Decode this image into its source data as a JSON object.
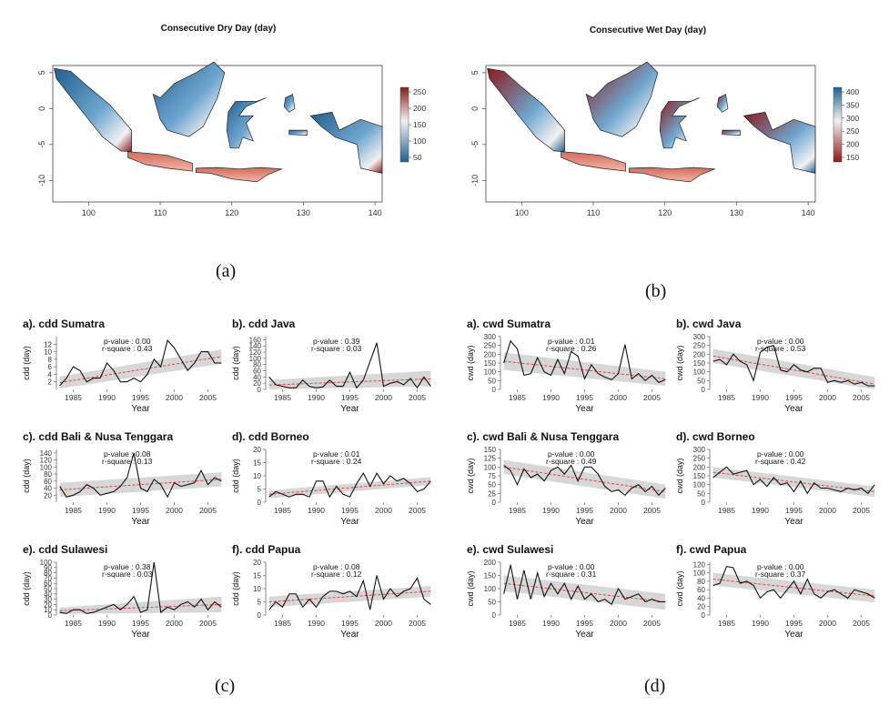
{
  "figure": {
    "labels": {
      "a": "(a)",
      "b": "(b)",
      "c": "(c)",
      "d": "(d)"
    }
  },
  "maps": [
    {
      "id": "a",
      "title": "Consecutive Dry Day (day)",
      "x_ticks": [
        "100",
        "110",
        "120",
        "130",
        "140"
      ],
      "y_ticks": [
        "5",
        "0",
        "-5",
        "-10"
      ],
      "colorbar_ticks": [
        "250",
        "200",
        "150",
        "100",
        "50"
      ],
      "colors": {
        "low": "#1f5f8f",
        "mid": "#f2f2f2",
        "high": "#8b1a1a"
      }
    },
    {
      "id": "b",
      "title": "Consecutive Wet Day (day)",
      "x_ticks": [
        "100",
        "110",
        "120",
        "130",
        "140"
      ],
      "y_ticks": [
        "5",
        "0",
        "-5",
        "-10"
      ],
      "colorbar_ticks": [
        "400",
        "350",
        "300",
        "250",
        "200",
        "150"
      ],
      "colors": {
        "low": "#8b1a1a",
        "mid": "#f2f2f2",
        "high": "#1f5f8f"
      }
    }
  ],
  "chart_data": [
    {
      "type": "line",
      "title": "a). cdd Sumatra",
      "xlabel": "Year",
      "ylabel": "cdd (day)",
      "x_ticks": [
        1985,
        1990,
        1995,
        2000,
        2005
      ],
      "y_ticks": [
        2,
        4,
        6,
        8,
        10,
        12
      ],
      "ylim": [
        0,
        14
      ],
      "pvalue_text": "p-value : 0.00",
      "rsquare_text": "r-square : 0.43",
      "x": [
        1983,
        1984,
        1985,
        1986,
        1987,
        1988,
        1989,
        1990,
        1991,
        1992,
        1993,
        1994,
        1995,
        1996,
        1997,
        1998,
        1999,
        2000,
        2001,
        2002,
        2003,
        2004,
        2005,
        2006,
        2007
      ],
      "y": [
        1,
        3,
        6,
        5,
        2,
        3,
        3,
        7,
        5,
        2,
        2,
        3,
        2,
        4,
        8,
        6,
        13,
        11,
        8,
        5,
        7,
        10,
        10,
        7,
        7
      ],
      "trend": [
        1.8,
        8.7
      ],
      "band_lo": [
        0.2,
        6.8
      ],
      "band_hi": [
        3.4,
        10.6
      ]
    },
    {
      "type": "line",
      "title": "b). cdd Java",
      "xlabel": "Year",
      "ylabel": "cdd (day)",
      "x_ticks": [
        1985,
        1990,
        1995,
        2000,
        2005
      ],
      "y_ticks": [
        0,
        20,
        40,
        60,
        80,
        100,
        120,
        140,
        160
      ],
      "ylim": [
        0,
        170
      ],
      "pvalue_text": "p-value : 0.39",
      "rsquare_text": "r-square : 0.03",
      "x": [
        1983,
        1984,
        1985,
        1986,
        1987,
        1988,
        1989,
        1990,
        1991,
        1992,
        1993,
        1994,
        1995,
        1996,
        1997,
        1998,
        1999,
        2000,
        2001,
        2002,
        2003,
        2004,
        2005,
        2006,
        2007
      ],
      "y": [
        40,
        15,
        10,
        5,
        5,
        30,
        10,
        5,
        8,
        30,
        10,
        10,
        55,
        5,
        30,
        90,
        150,
        10,
        20,
        25,
        15,
        35,
        5,
        40,
        10
      ],
      "trend": [
        14,
        34
      ],
      "band_lo": [
        0,
        10
      ],
      "band_hi": [
        30,
        60
      ]
    },
    {
      "type": "line",
      "title": "c). cdd Bali & Nusa Tenggara",
      "xlabel": "Year",
      "ylabel": "cdd (day)",
      "x_ticks": [
        1985,
        1990,
        1995,
        2000,
        2005
      ],
      "y_ticks": [
        20,
        40,
        60,
        80,
        100,
        120,
        140
      ],
      "ylim": [
        0,
        150
      ],
      "pvalue_text": "p-value : 0.08",
      "rsquare_text": "r-square : 0.13",
      "x": [
        1983,
        1984,
        1985,
        1986,
        1987,
        1988,
        1989,
        1990,
        1991,
        1992,
        1993,
        1994,
        1995,
        1996,
        1997,
        1998,
        1999,
        2000,
        2001,
        2002,
        2003,
        2004,
        2005,
        2006,
        2007
      ],
      "y": [
        45,
        15,
        20,
        30,
        50,
        40,
        20,
        25,
        30,
        45,
        70,
        140,
        40,
        30,
        65,
        50,
        15,
        55,
        45,
        50,
        55,
        90,
        50,
        70,
        60
      ],
      "trend": [
        35,
        65
      ],
      "band_lo": [
        15,
        45
      ],
      "band_hi": [
        55,
        85
      ]
    },
    {
      "type": "line",
      "title": "d). cdd Borneo",
      "xlabel": "Year",
      "ylabel": "cdd (day)",
      "x_ticks": [
        1985,
        1990,
        1995,
        2000,
        2005
      ],
      "y_ticks": [
        0,
        5,
        10,
        15,
        20
      ],
      "ylim": [
        0,
        20
      ],
      "pvalue_text": "p-value : 0.01",
      "rsquare_text": "r-square : 0.24",
      "x": [
        1983,
        1984,
        1985,
        1986,
        1987,
        1988,
        1989,
        1990,
        1991,
        1992,
        1993,
        1994,
        1995,
        1996,
        1997,
        1998,
        1999,
        2000,
        2001,
        2002,
        2003,
        2004,
        2005,
        2006,
        2007
      ],
      "y": [
        2,
        4,
        3,
        2,
        3,
        3,
        2,
        8,
        8,
        2,
        6,
        3,
        2,
        7,
        11,
        6,
        11,
        7,
        10,
        8,
        9,
        7,
        4,
        5,
        8
      ],
      "trend": [
        3,
        8
      ],
      "band_lo": [
        1.5,
        6.5
      ],
      "band_hi": [
        4.5,
        9.5
      ]
    },
    {
      "type": "line",
      "title": "e). cdd Sulawesi",
      "xlabel": "Year",
      "ylabel": "cdd (day)",
      "x_ticks": [
        1985,
        1990,
        1995,
        2000,
        2005
      ],
      "y_ticks": [
        0,
        10,
        20,
        30,
        40,
        50,
        60,
        70,
        80,
        90,
        100
      ],
      "ylim": [
        0,
        100
      ],
      "pvalue_text": "p-value : 0.38",
      "rsquare_text": "r-square : 0.03",
      "x": [
        1983,
        1984,
        1985,
        1986,
        1987,
        1988,
        1989,
        1990,
        1991,
        1992,
        1993,
        1994,
        1995,
        1996,
        1997,
        1998,
        1999,
        2000,
        2001,
        2002,
        2003,
        2004,
        2005,
        2006,
        2007
      ],
      "y": [
        5,
        3,
        10,
        10,
        3,
        5,
        10,
        15,
        20,
        10,
        20,
        35,
        5,
        10,
        100,
        5,
        15,
        10,
        20,
        25,
        15,
        30,
        10,
        25,
        15
      ],
      "trend": [
        8,
        20
      ],
      "band_lo": [
        2,
        5
      ],
      "band_hi": [
        14,
        35
      ]
    },
    {
      "type": "line",
      "title": "f). cdd Papua",
      "xlabel": "Year",
      "ylabel": "cdd (day)",
      "x_ticks": [
        1985,
        1990,
        1995,
        2000,
        2005
      ],
      "y_ticks": [
        0,
        5,
        10,
        15,
        20
      ],
      "ylim": [
        0,
        20
      ],
      "pvalue_text": "p-value : 0.08",
      "rsquare_text": "r-square : 0.12",
      "x": [
        1983,
        1984,
        1985,
        1986,
        1987,
        1988,
        1989,
        1990,
        1991,
        1992,
        1993,
        1994,
        1995,
        1996,
        1997,
        1998,
        1999,
        2000,
        2001,
        2002,
        2003,
        2004,
        2005,
        2006,
        2007
      ],
      "y": [
        2,
        5,
        3,
        8,
        8,
        3,
        6,
        3,
        7,
        9,
        9,
        8,
        9,
        7,
        13,
        2,
        15,
        6,
        10,
        7,
        9,
        10,
        14,
        6,
        4
      ],
      "trend": [
        5,
        9
      ],
      "band_lo": [
        3,
        7
      ],
      "band_hi": [
        7,
        11
      ]
    },
    {
      "type": "line",
      "title": "a). cwd Sumatra",
      "xlabel": "Year",
      "ylabel": "cwd (day)",
      "x_ticks": [
        1985,
        1990,
        1995,
        2000,
        2005
      ],
      "y_ticks": [
        0,
        50,
        100,
        150,
        200,
        250,
        300
      ],
      "ylim": [
        0,
        300
      ],
      "pvalue_text": "p-value : 0.01",
      "rsquare_text": "r-square : 0.26",
      "x": [
        1983,
        1984,
        1985,
        1986,
        1987,
        1988,
        1989,
        1990,
        1991,
        1992,
        1993,
        1994,
        1995,
        1996,
        1997,
        1998,
        1999,
        2000,
        2001,
        2002,
        2003,
        2004,
        2005,
        2006,
        2007
      ],
      "y": [
        150,
        275,
        230,
        80,
        90,
        180,
        100,
        80,
        170,
        90,
        215,
        190,
        60,
        140,
        90,
        70,
        55,
        90,
        255,
        60,
        90,
        50,
        80,
        40,
        55
      ],
      "trend": [
        160,
        60
      ],
      "band_lo": [
        110,
        20
      ],
      "band_hi": [
        210,
        100
      ]
    },
    {
      "type": "line",
      "title": "b). cwd Java",
      "xlabel": "Year",
      "ylabel": "cwd (day)",
      "x_ticks": [
        1985,
        1990,
        1995,
        2000,
        2005
      ],
      "y_ticks": [
        0,
        50,
        100,
        150,
        200,
        250,
        300
      ],
      "ylim": [
        0,
        300
      ],
      "pvalue_text": "p-value : 0.00",
      "rsquare_text": "r-square : 0.53",
      "x": [
        1983,
        1984,
        1985,
        1986,
        1987,
        1988,
        1989,
        1990,
        1991,
        1992,
        1993,
        1994,
        1995,
        1996,
        1997,
        1998,
        1999,
        2000,
        2001,
        2002,
        2003,
        2004,
        2005,
        2006,
        2007
      ],
      "y": [
        160,
        170,
        140,
        200,
        160,
        140,
        50,
        210,
        240,
        250,
        110,
        100,
        140,
        110,
        100,
        120,
        120,
        40,
        50,
        40,
        50,
        30,
        40,
        20,
        20
      ],
      "trend": [
        190,
        30
      ],
      "band_lo": [
        150,
        0
      ],
      "band_hi": [
        230,
        70
      ]
    },
    {
      "type": "line",
      "title": "c). cwd Bali & Nusa Tenggara",
      "xlabel": "Year",
      "ylabel": "cwd (day)",
      "x_ticks": [
        1985,
        1990,
        1995,
        2000,
        2005
      ],
      "y_ticks": [
        0,
        25,
        50,
        75,
        100,
        125,
        150
      ],
      "ylim": [
        0,
        150
      ],
      "pvalue_text": "p-value : 0.00",
      "rsquare_text": "r-square : 0.49",
      "x": [
        1983,
        1984,
        1985,
        1986,
        1987,
        1988,
        1989,
        1990,
        1991,
        1992,
        1993,
        1994,
        1995,
        1996,
        1997,
        1998,
        1999,
        2000,
        2001,
        2002,
        2003,
        2004,
        2005,
        2006,
        2007
      ],
      "y": [
        105,
        90,
        50,
        95,
        70,
        80,
        60,
        90,
        100,
        80,
        105,
        60,
        100,
        100,
        80,
        45,
        30,
        35,
        20,
        40,
        50,
        30,
        45,
        20,
        40
      ],
      "trend": [
        100,
        30
      ],
      "band_lo": [
        80,
        10
      ],
      "band_hi": [
        120,
        50
      ]
    },
    {
      "type": "line",
      "title": "d). cwd Borneo",
      "xlabel": "Year",
      "ylabel": "cwd (day)",
      "x_ticks": [
        1985,
        1990,
        1995,
        2000,
        2005
      ],
      "y_ticks": [
        0,
        50,
        100,
        150,
        200,
        250,
        300
      ],
      "ylim": [
        0,
        300
      ],
      "pvalue_text": "p-value : 0.00",
      "rsquare_text": "r-square : 0.42",
      "x": [
        1983,
        1984,
        1985,
        1986,
        1987,
        1988,
        1989,
        1990,
        1991,
        1992,
        1993,
        1994,
        1995,
        1996,
        1997,
        1998,
        1999,
        2000,
        2001,
        2002,
        2003,
        2004,
        2005,
        2006,
        2007
      ],
      "y": [
        140,
        170,
        200,
        160,
        170,
        180,
        100,
        130,
        90,
        140,
        100,
        110,
        60,
        120,
        50,
        110,
        80,
        80,
        70,
        60,
        80,
        70,
        80,
        50,
        100
      ],
      "trend": [
        170,
        60
      ],
      "band_lo": [
        140,
        30
      ],
      "band_hi": [
        200,
        90
      ]
    },
    {
      "type": "line",
      "title": "e). cwd Sulawesi",
      "xlabel": "Year",
      "ylabel": "cwd (day)",
      "x_ticks": [
        1985,
        1990,
        1995,
        2000,
        2005
      ],
      "y_ticks": [
        0,
        50,
        100,
        150,
        200
      ],
      "ylim": [
        0,
        200
      ],
      "pvalue_text": "p-value : 0.00",
      "rsquare_text": "r-square : 0.31",
      "x": [
        1983,
        1984,
        1985,
        1986,
        1987,
        1988,
        1989,
        1990,
        1991,
        1992,
        1993,
        1994,
        1995,
        1996,
        1997,
        1998,
        1999,
        2000,
        2001,
        2002,
        2003,
        2004,
        2005,
        2006,
        2007
      ],
      "y": [
        80,
        190,
        60,
        170,
        60,
        160,
        70,
        120,
        80,
        120,
        60,
        110,
        60,
        80,
        50,
        60,
        40,
        100,
        60,
        70,
        80,
        50,
        60,
        50,
        50
      ],
      "trend": [
        120,
        50
      ],
      "band_lo": [
        90,
        20
      ],
      "band_hi": [
        150,
        80
      ]
    },
    {
      "type": "line",
      "title": "f). cwd Papua",
      "xlabel": "Year",
      "ylabel": "cwd (day)",
      "x_ticks": [
        1985,
        1990,
        1995,
        2000,
        2005
      ],
      "y_ticks": [
        0,
        20,
        40,
        60,
        80,
        100,
        120
      ],
      "ylim": [
        0,
        125
      ],
      "pvalue_text": "p-value : 0.00",
      "rsquare_text": "r-square : 0.37",
      "x": [
        1983,
        1984,
        1985,
        1986,
        1987,
        1988,
        1989,
        1990,
        1991,
        1992,
        1993,
        1994,
        1995,
        1996,
        1997,
        1998,
        1999,
        2000,
        2001,
        2002,
        2003,
        2004,
        2005,
        2006,
        2007
      ],
      "y": [
        70,
        75,
        115,
        112,
        75,
        80,
        70,
        40,
        55,
        60,
        40,
        60,
        80,
        50,
        85,
        50,
        40,
        55,
        60,
        50,
        40,
        60,
        55,
        50,
        40
      ],
      "trend": [
        85,
        45
      ],
      "band_lo": [
        70,
        30
      ],
      "band_hi": [
        100,
        60
      ]
    }
  ]
}
